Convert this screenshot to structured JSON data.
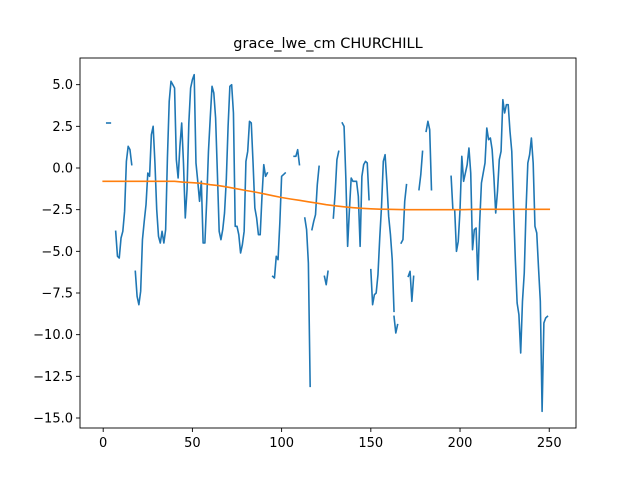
{
  "chart_data": {
    "type": "line",
    "title": "grace_lwe_cm CHURCHILL",
    "xlabel": "",
    "ylabel": "",
    "xlim": [
      -13,
      265
    ],
    "ylim": [
      -15.6,
      6.6
    ],
    "xticks": [
      0,
      50,
      100,
      150,
      200,
      250
    ],
    "yticks": [
      5.0,
      2.5,
      0.0,
      -2.5,
      -5.0,
      -7.5,
      -10.0,
      -12.5,
      -15.0
    ],
    "ytick_labels": [
      "5.0",
      "2.5",
      "0.0",
      "−2.5",
      "−5.0",
      "−7.5",
      "−10.0",
      "−12.5",
      "−15.0"
    ],
    "grid": false,
    "legend": "none",
    "series": [
      {
        "color": "#1f77b4",
        "segments": [
          [
            [
              2,
              2.7
            ],
            [
              4,
              2.7
            ]
          ],
          [
            [
              7,
              -3.8
            ],
            [
              8,
              -5.3
            ],
            [
              9,
              -5.4
            ],
            [
              10,
              -4.2
            ],
            [
              11,
              -3.8
            ],
            [
              12,
              -2.6
            ],
            [
              13,
              0.4
            ],
            [
              14,
              1.3
            ],
            [
              15,
              1.1
            ],
            [
              16,
              0.2
            ]
          ],
          [
            [
              18,
              -6.2
            ],
            [
              19,
              -7.7
            ],
            [
              20,
              -8.2
            ],
            [
              21,
              -7.4
            ],
            [
              22,
              -4.3
            ],
            [
              23,
              -3.2
            ],
            [
              24,
              -2.2
            ],
            [
              25,
              -0.3
            ],
            [
              26,
              -0.5
            ],
            [
              27,
              2.0
            ],
            [
              28,
              2.5
            ],
            [
              29,
              0.3
            ],
            [
              30,
              -2.5
            ],
            [
              31,
              -4.1
            ],
            [
              32,
              -4.5
            ],
            [
              33,
              -3.8
            ],
            [
              34,
              -4.5
            ],
            [
              35,
              -3.7
            ],
            [
              36,
              0.6
            ],
            [
              37,
              4.0
            ],
            [
              38,
              5.2
            ],
            [
              39,
              5.0
            ],
            [
              40,
              4.8
            ],
            [
              41,
              0.5
            ],
            [
              42,
              -0.6
            ],
            [
              43,
              1.3
            ],
            [
              44,
              2.7
            ],
            [
              45,
              0.3
            ],
            [
              46,
              -3.0
            ],
            [
              47,
              -1.3
            ],
            [
              48,
              2.7
            ],
            [
              49,
              4.8
            ],
            [
              50,
              5.3
            ],
            [
              51,
              5.6
            ],
            [
              52,
              0.3
            ],
            [
              53,
              -0.8
            ],
            [
              54,
              -2.0
            ],
            [
              55,
              -0.8
            ],
            [
              56,
              -4.5
            ],
            [
              57,
              -4.5
            ],
            [
              58,
              -2.0
            ],
            [
              59,
              1.0
            ],
            [
              60,
              3.0
            ],
            [
              61,
              4.9
            ],
            [
              62,
              4.5
            ],
            [
              63,
              3.0
            ],
            [
              64,
              -0.3
            ],
            [
              65,
              -3.8
            ],
            [
              66,
              -4.3
            ],
            [
              67,
              -3.7
            ],
            [
              68,
              -2.7
            ],
            [
              69,
              -0.7
            ],
            [
              70,
              2.5
            ],
            [
              71,
              4.9
            ],
            [
              72,
              5.0
            ],
            [
              73,
              3.3
            ],
            [
              74,
              -3.5
            ],
            [
              75,
              -3.5
            ],
            [
              76,
              -4.0
            ],
            [
              77,
              -5.1
            ],
            [
              78,
              -4.6
            ],
            [
              79,
              -3.8
            ],
            [
              80,
              0.4
            ],
            [
              81,
              1.0
            ],
            [
              82,
              2.8
            ],
            [
              83,
              2.7
            ],
            [
              84,
              0.3
            ],
            [
              85,
              -2.4
            ],
            [
              86,
              -3.0
            ],
            [
              87,
              -4.0
            ],
            [
              88,
              -4.0
            ],
            [
              89,
              -1.7
            ],
            [
              90,
              0.2
            ],
            [
              91,
              -0.5
            ],
            [
              92,
              -0.3
            ]
          ],
          [
            [
              95,
              -6.5
            ],
            [
              96,
              -6.6
            ],
            [
              97,
              -5.3
            ],
            [
              98,
              -5.5
            ],
            [
              99,
              -3.3
            ],
            [
              100,
              -0.5
            ],
            [
              101,
              -0.4
            ],
            [
              102,
              -0.3
            ]
          ],
          [
            [
              107,
              0.7
            ],
            [
              108,
              0.7
            ],
            [
              109,
              1.1
            ],
            [
              110,
              0.2
            ]
          ],
          [
            [
              113,
              -3.0
            ],
            [
              114,
              -3.7
            ],
            [
              115,
              -5.7
            ],
            [
              116,
              -13.1
            ]
          ],
          [
            [
              117,
              -3.7
            ],
            [
              118,
              -3.2
            ],
            [
              119,
              -2.8
            ],
            [
              120,
              -1.0
            ],
            [
              121,
              0.1
            ]
          ],
          [
            [
              124,
              -6.5
            ],
            [
              125,
              -7.0
            ],
            [
              126,
              -6.2
            ]
          ],
          [
            [
              129,
              -3.0
            ],
            [
              130,
              -1.5
            ],
            [
              131,
              0.5
            ],
            [
              132,
              1.0
            ]
          ],
          [
            [
              134,
              2.7
            ],
            [
              135,
              2.5
            ],
            [
              136,
              -0.6
            ],
            [
              137,
              -4.7
            ],
            [
              138,
              -2.5
            ],
            [
              139,
              -0.6
            ],
            [
              140,
              -0.8
            ],
            [
              141,
              -0.8
            ],
            [
              142,
              -0.8
            ],
            [
              143,
              -1.7
            ],
            [
              144,
              -4.7
            ],
            [
              145,
              -0.5
            ],
            [
              146,
              0.2
            ],
            [
              147,
              0.4
            ],
            [
              148,
              0.3
            ],
            [
              149,
              -1.9
            ]
          ],
          [
            [
              150,
              -6.1
            ],
            [
              151,
              -8.2
            ],
            [
              152,
              -7.6
            ],
            [
              153,
              -7.5
            ],
            [
              154,
              -6.4
            ],
            [
              155,
              -4.2
            ],
            [
              156,
              -2.3
            ],
            [
              157,
              0.4
            ],
            [
              158,
              0.8
            ],
            [
              159,
              -0.9
            ],
            [
              160,
              -2.9
            ],
            [
              161,
              -4.0
            ],
            [
              162,
              -5.5
            ],
            [
              163,
              -8.6
            ]
          ],
          [
            [
              163,
              -8.9
            ],
            [
              164,
              -9.9
            ],
            [
              165,
              -9.4
            ]
          ],
          [
            [
              167,
              -4.5
            ],
            [
              168,
              -4.3
            ],
            [
              169,
              -2.0
            ],
            [
              170,
              -1.0
            ]
          ],
          [
            [
              171,
              -6.5
            ],
            [
              172,
              -6.2
            ],
            [
              173,
              -8.0
            ],
            [
              174,
              -6.5
            ]
          ],
          [
            [
              177,
              -1.3
            ],
            [
              178,
              -0.4
            ],
            [
              179,
              1.0
            ]
          ],
          [
            [
              181,
              2.2
            ],
            [
              182,
              2.8
            ],
            [
              183,
              2.3
            ],
            [
              184,
              -1.3
            ]
          ],
          [
            [
              195,
              -0.5
            ],
            [
              196,
              -2.5
            ],
            [
              197,
              -2.5
            ],
            [
              198,
              -5.0
            ],
            [
              199,
              -4.4
            ],
            [
              200,
              -2.5
            ],
            [
              201,
              0.7
            ],
            [
              202,
              -0.8
            ],
            [
              203,
              -0.3
            ],
            [
              204,
              0.2
            ],
            [
              205,
              1.2
            ],
            [
              206,
              -0.3
            ],
            [
              207,
              -4.9
            ],
            [
              208,
              -3.7
            ],
            [
              209,
              -3.6
            ],
            [
              210,
              -6.7
            ],
            [
              211,
              -3.3
            ],
            [
              212,
              -0.9
            ],
            [
              213,
              -0.3
            ],
            [
              214,
              0.3
            ],
            [
              215,
              2.4
            ],
            [
              216,
              1.7
            ],
            [
              217,
              1.8
            ],
            [
              218,
              1.1
            ],
            [
              219,
              -0.6
            ],
            [
              220,
              -2.7
            ],
            [
              221,
              -1.4
            ],
            [
              222,
              0.5
            ],
            [
              223,
              1.0
            ],
            [
              224,
              4.1
            ],
            [
              225,
              3.3
            ],
            [
              226,
              3.8
            ],
            [
              227,
              3.8
            ],
            [
              228,
              2.2
            ],
            [
              229,
              1.0
            ],
            [
              230,
              -2.4
            ],
            [
              231,
              -5.5
            ],
            [
              232,
              -8.1
            ],
            [
              233,
              -8.8
            ],
            [
              234,
              -11.1
            ],
            [
              235,
              -8.0
            ],
            [
              236,
              -6.3
            ],
            [
              237,
              -2.5
            ],
            [
              238,
              0.3
            ],
            [
              239,
              0.8
            ],
            [
              240,
              1.8
            ],
            [
              241,
              0.3
            ],
            [
              242,
              -3.5
            ],
            [
              243,
              -3.9
            ],
            [
              244,
              -6.0
            ],
            [
              245,
              -8.0
            ],
            [
              246,
              -14.6
            ],
            [
              247,
              -9.3
            ],
            [
              248,
              -9.0
            ],
            [
              249,
              -8.9
            ]
          ]
        ]
      },
      {
        "color": "#ff7f0e",
        "segments": [
          [
            [
              0,
              -0.8
            ],
            [
              10,
              -0.8
            ],
            [
              20,
              -0.8
            ],
            [
              30,
              -0.8
            ],
            [
              40,
              -0.8
            ],
            [
              45,
              -0.85
            ],
            [
              50,
              -0.88
            ],
            [
              55,
              -0.92
            ],
            [
              60,
              -1.0
            ],
            [
              65,
              -1.06
            ],
            [
              70,
              -1.15
            ],
            [
              75,
              -1.25
            ],
            [
              80,
              -1.35
            ],
            [
              85,
              -1.44
            ],
            [
              90,
              -1.55
            ],
            [
              95,
              -1.66
            ],
            [
              100,
              -1.77
            ],
            [
              105,
              -1.86
            ],
            [
              110,
              -1.94
            ],
            [
              115,
              -2.03
            ],
            [
              120,
              -2.11
            ],
            [
              125,
              -2.2
            ],
            [
              130,
              -2.27
            ],
            [
              135,
              -2.33
            ],
            [
              140,
              -2.38
            ],
            [
              145,
              -2.42
            ],
            [
              150,
              -2.45
            ],
            [
              155,
              -2.47
            ],
            [
              160,
              -2.48
            ],
            [
              170,
              -2.5
            ],
            [
              180,
              -2.5
            ],
            [
              190,
              -2.5
            ],
            [
              200,
              -2.5
            ],
            [
              210,
              -2.48
            ],
            [
              220,
              -2.48
            ],
            [
              230,
              -2.48
            ],
            [
              240,
              -2.48
            ],
            [
              250,
              -2.48
            ]
          ]
        ]
      }
    ]
  }
}
